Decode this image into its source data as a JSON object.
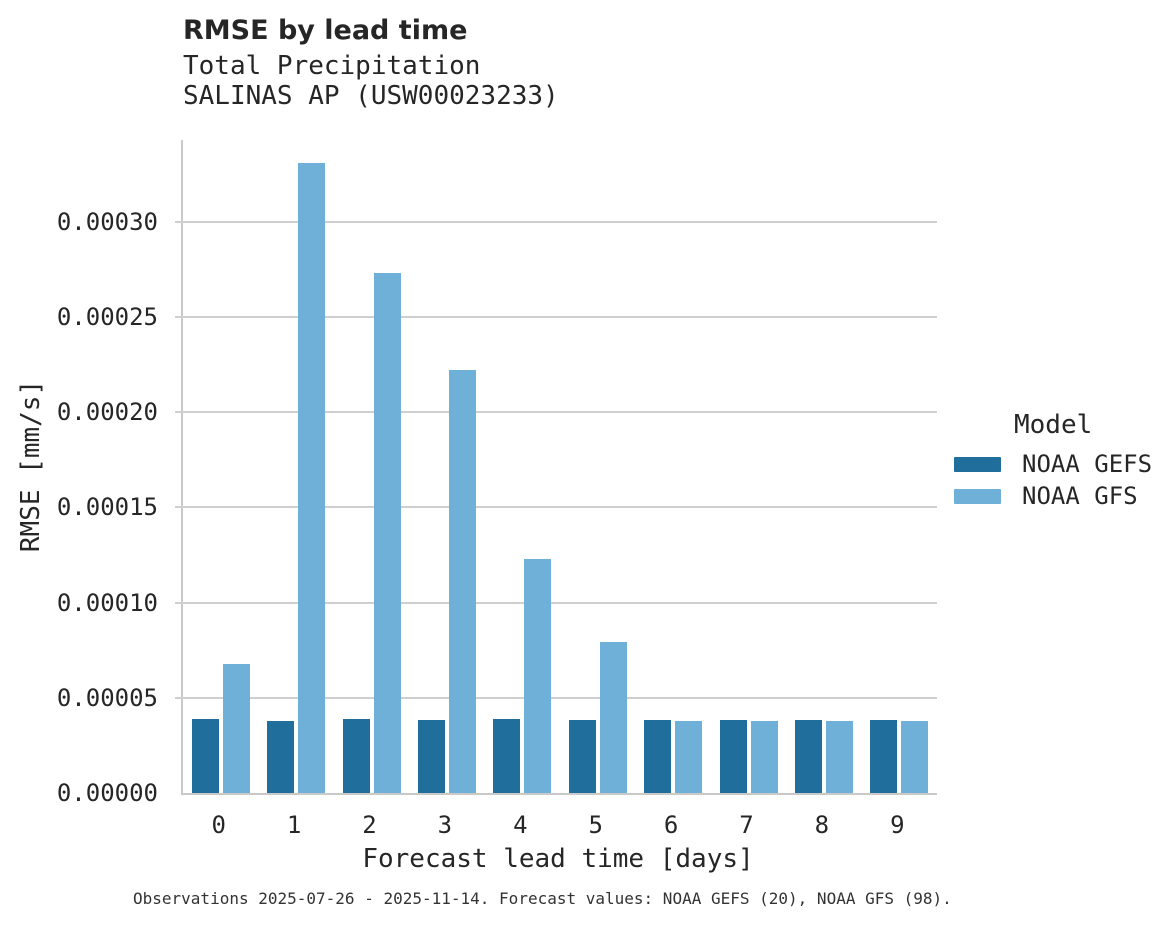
{
  "chart_data": {
    "type": "bar",
    "title": "RMSE by lead time",
    "subtitle_lines": [
      "Total Precipitation",
      "SALINAS AP (USW00023233)"
    ],
    "categories": [
      "0",
      "1",
      "2",
      "3",
      "4",
      "5",
      "6",
      "7",
      "8",
      "9"
    ],
    "series": [
      {
        "name": "NOAA GEFS",
        "color": "#1f6e9c",
        "values": [
          3.88e-05,
          3.78e-05,
          3.88e-05,
          3.86e-05,
          3.88e-05,
          3.85e-05,
          3.85e-05,
          3.85e-05,
          3.85e-05,
          3.85e-05
        ]
      },
      {
        "name": "NOAA GFS",
        "color": "#6fb0d8",
        "values": [
          6.77e-05,
          0.000331,
          0.000273,
          0.000222,
          0.000123,
          7.92e-05,
          3.78e-05,
          3.78e-05,
          3.78e-05,
          3.78e-05
        ]
      }
    ],
    "xlabel": "Forecast lead time [days]",
    "ylabel": "RMSE [mm/s]",
    "ylim": [
      0,
      0.000343
    ],
    "yticks": [
      0,
      5e-05,
      0.0001,
      0.00015,
      0.0002,
      0.00025,
      0.0003
    ],
    "ytick_labels": [
      "0.00000",
      "0.00005",
      "0.00010",
      "0.00015",
      "0.00020",
      "0.00025",
      "0.00030"
    ],
    "grid": "horizontal",
    "legend": {
      "title": "Model",
      "position": "right-of-plot"
    }
  },
  "footer": {
    "note": "Observations 2025-07-26 - 2025-11-14. Forecast values: NOAA GEFS (20), NOAA GFS (98)."
  },
  "colors": {
    "background": "#ffffff",
    "grid": "#cfcfcf",
    "spine": "#c9c9c9",
    "text": "#262626",
    "footer_text": "#333333"
  }
}
